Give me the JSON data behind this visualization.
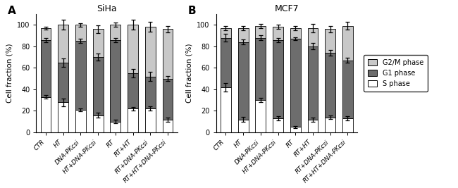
{
  "siha": {
    "categories": [
      "CTR",
      "HT",
      "DNA-PKcsi",
      "HT+DNA-PKcsi",
      "RT",
      "RT+HT",
      "RT+DNA-PKcsi",
      "RT+HT+DNA-PKcsi"
    ],
    "S_phase": [
      33,
      28,
      21,
      16,
      10,
      22,
      22,
      12
    ],
    "G1_phase": [
      53,
      37,
      64,
      54,
      76,
      33,
      30,
      38
    ],
    "G2M_phase": [
      11,
      35,
      15,
      26,
      14,
      45,
      46,
      46
    ],
    "S_err": [
      1.5,
      3.5,
      1.5,
      2.0,
      1.5,
      1.5,
      2.0,
      2.0
    ],
    "G1_err": [
      2.0,
      4.0,
      2.0,
      3.0,
      2.0,
      4.0,
      4.0,
      2.5
    ],
    "G2M_err": [
      1.5,
      4.5,
      1.5,
      3.5,
      2.0,
      4.5,
      4.5,
      3.0
    ]
  },
  "mcf7": {
    "categories": [
      "CTR",
      "HT",
      "DNA-PKcsi",
      "HT+DNA-PKcsi",
      "RT",
      "RT+HT",
      "RT+DNA-PKcsi",
      "RT+HT+DNA-PKcsi"
    ],
    "S_phase": [
      42,
      12,
      30,
      13,
      5,
      12,
      14,
      13
    ],
    "G1_phase": [
      46,
      72,
      58,
      73,
      82,
      68,
      60,
      54
    ],
    "G2M_phase": [
      9,
      13,
      11,
      12,
      10,
      17,
      22,
      32
    ],
    "S_err": [
      4.0,
      2.5,
      2.0,
      2.0,
      1.0,
      2.0,
      1.5,
      2.0
    ],
    "G1_err": [
      3.5,
      2.5,
      2.5,
      2.0,
      1.5,
      3.0,
      2.5,
      2.5
    ],
    "G2M_err": [
      2.0,
      2.0,
      2.0,
      2.0,
      2.0,
      4.0,
      3.0,
      3.5
    ]
  },
  "colors": {
    "S_phase": "#ffffff",
    "G1_phase": "#6d6d6d",
    "G2M_phase": "#c8c8c8"
  },
  "title_siha": "SiHa",
  "title_mcf7": "MCF7",
  "ylabel": "Cell fraction (%)",
  "ylim": [
    0,
    110
  ],
  "yticks": [
    0,
    20,
    40,
    60,
    80,
    100
  ],
  "legend_labels": [
    "G2/M phase",
    "G1 phase",
    "S phase"
  ],
  "panel_labels": [
    "A",
    "B"
  ]
}
